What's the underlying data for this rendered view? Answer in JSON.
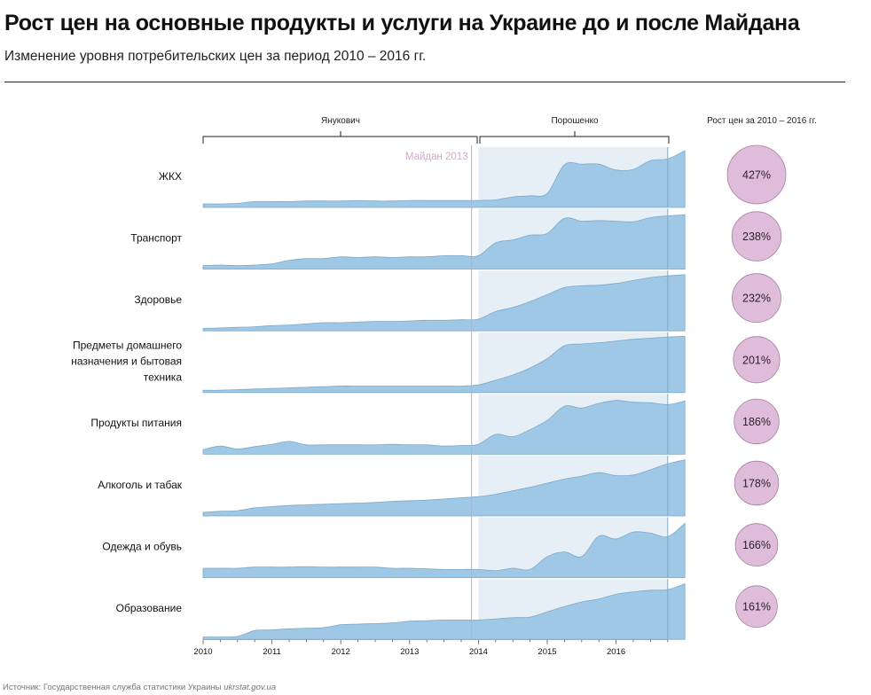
{
  "title": "Рост цен на основные продукты и услуги на Украине до и после Майдана",
  "subtitle": "Изменение уровня потребительских цен за период 2010 – 2016 гг.",
  "source_prefix": "Источник: Государственная служба статистики Украины ",
  "source_link": "ukrstat.gov.ua",
  "colors": {
    "area_fill": "#9ec8e6",
    "area_stroke": "#7fa9c8",
    "post_period_bg": "#e6eff6",
    "maidan_line": "#c9a3c4",
    "maidan_label": "#d3a9cc",
    "bubble_fill": "#dfbcda",
    "bubble_stroke": "#a77ea2"
  },
  "chart_data": {
    "type": "area",
    "title": "Рост цен на основные продукты и услуги на Украине до и после Майдана",
    "subtitle": "Изменение уровня потребительских цен за период 2010 – 2016 гг.",
    "layout": "small-multiples",
    "x_start": 2010.0,
    "x_end": 2016.75,
    "x_step": 0.25,
    "x_ticks": [
      "2010",
      "2011",
      "2012",
      "2013",
      "2014",
      "2015",
      "2016"
    ],
    "y_note": "relative price level, each row independently scaled (0 = row baseline, 1 = row max)",
    "periods": [
      {
        "label": "Янукович",
        "from": 2010.0,
        "to": 2014.0
      },
      {
        "label": "Порошенко",
        "from": 2014.0,
        "to": 2016.75
      }
    ],
    "annotation": {
      "label": "Майдан 2013",
      "x": 2013.9
    },
    "growth_header": "Рост цен за 2010 – 2016 гг.",
    "series": [
      {
        "name": "ЖКХ",
        "growth": "427%",
        "growth_value": 427,
        "values": [
          0.06,
          0.06,
          0.07,
          0.1,
          0.1,
          0.1,
          0.11,
          0.11,
          0.11,
          0.12,
          0.11,
          0.11,
          0.12,
          0.12,
          0.12,
          0.12,
          0.12,
          0.13,
          0.18,
          0.2,
          0.24,
          0.73,
          0.74,
          0.74,
          0.64,
          0.65,
          0.8,
          0.83,
          0.97
        ]
      },
      {
        "name": "Транспорт",
        "growth": "238%",
        "growth_value": 238,
        "values": [
          0.06,
          0.07,
          0.06,
          0.07,
          0.09,
          0.15,
          0.18,
          0.18,
          0.21,
          0.2,
          0.21,
          0.2,
          0.21,
          0.21,
          0.23,
          0.23,
          0.23,
          0.45,
          0.5,
          0.58,
          0.61,
          0.87,
          0.82,
          0.83,
          0.82,
          0.81,
          0.88,
          0.91,
          0.93
        ]
      },
      {
        "name": "Здоровье",
        "growth": "232%",
        "growth_value": 232,
        "values": [
          0.04,
          0.05,
          0.06,
          0.07,
          0.09,
          0.1,
          0.12,
          0.14,
          0.14,
          0.15,
          0.16,
          0.16,
          0.17,
          0.18,
          0.18,
          0.19,
          0.2,
          0.33,
          0.4,
          0.5,
          0.62,
          0.74,
          0.77,
          0.78,
          0.81,
          0.86,
          0.91,
          0.94,
          0.96
        ]
      },
      {
        "name": "Предметы домашнего назначения и бытовая техника",
        "growth": "201%",
        "growth_value": 201,
        "values": [
          0.04,
          0.04,
          0.05,
          0.06,
          0.07,
          0.08,
          0.09,
          0.1,
          0.11,
          0.11,
          0.11,
          0.11,
          0.11,
          0.11,
          0.11,
          0.11,
          0.13,
          0.21,
          0.3,
          0.42,
          0.58,
          0.8,
          0.83,
          0.85,
          0.88,
          0.91,
          0.93,
          0.95,
          0.96
        ]
      },
      {
        "name": "Продукты питания",
        "growth": "186%",
        "growth_value": 186,
        "values": [
          0.08,
          0.14,
          0.09,
          0.13,
          0.17,
          0.22,
          0.16,
          0.16,
          0.16,
          0.16,
          0.16,
          0.17,
          0.16,
          0.16,
          0.14,
          0.15,
          0.17,
          0.34,
          0.3,
          0.42,
          0.58,
          0.82,
          0.79,
          0.87,
          0.92,
          0.89,
          0.88,
          0.85,
          0.91
        ]
      },
      {
        "name": "Алкоголь и табак",
        "growth": "178%",
        "growth_value": 178,
        "values": [
          0.06,
          0.08,
          0.09,
          0.14,
          0.16,
          0.18,
          0.19,
          0.2,
          0.21,
          0.22,
          0.23,
          0.25,
          0.26,
          0.27,
          0.29,
          0.31,
          0.33,
          0.37,
          0.43,
          0.49,
          0.56,
          0.63,
          0.68,
          0.74,
          0.69,
          0.7,
          0.79,
          0.89,
          0.96
        ]
      },
      {
        "name": "Одежда и обувь",
        "growth": "166%",
        "growth_value": 166,
        "values": [
          0.16,
          0.16,
          0.16,
          0.18,
          0.18,
          0.18,
          0.19,
          0.18,
          0.18,
          0.18,
          0.18,
          0.16,
          0.16,
          0.15,
          0.14,
          0.14,
          0.14,
          0.12,
          0.16,
          0.14,
          0.36,
          0.44,
          0.36,
          0.71,
          0.66,
          0.78,
          0.76,
          0.7,
          0.93
        ]
      },
      {
        "name": "Образование",
        "growth": "161%",
        "growth_value": 161,
        "values": [
          0.04,
          0.04,
          0.05,
          0.15,
          0.16,
          0.18,
          0.19,
          0.2,
          0.25,
          0.26,
          0.27,
          0.28,
          0.31,
          0.32,
          0.33,
          0.33,
          0.33,
          0.35,
          0.37,
          0.38,
          0.47,
          0.56,
          0.64,
          0.69,
          0.77,
          0.81,
          0.84,
          0.85,
          0.95
        ]
      }
    ]
  }
}
